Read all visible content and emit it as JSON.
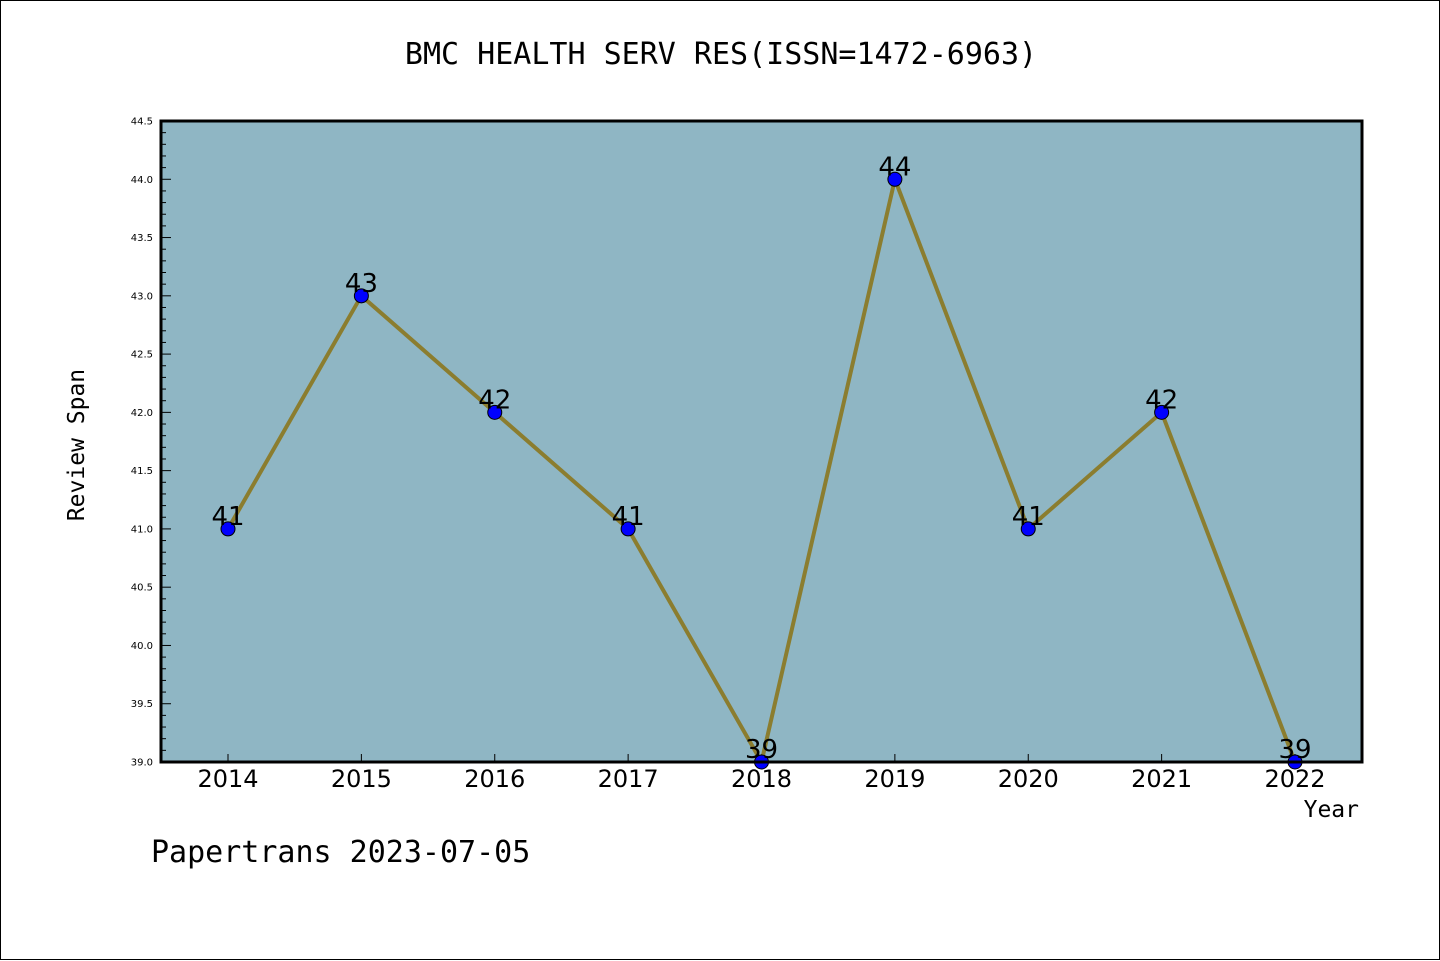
{
  "chart_data": {
    "type": "line",
    "title": "BMC HEALTH SERV RES(ISSN=1472-6963)",
    "xlabel": "Year",
    "ylabel": "Review Span",
    "categories": [
      "2014",
      "2015",
      "2016",
      "2017",
      "2018",
      "2019",
      "2020",
      "2021",
      "2022"
    ],
    "series": [
      {
        "values": [
          41,
          43,
          42,
          41,
          39,
          44,
          41,
          42,
          39
        ]
      }
    ],
    "data_labels": [
      "41",
      "43",
      "42",
      "41",
      "39",
      "44",
      "41",
      "42",
      "39"
    ],
    "ylim": [
      39.0,
      44.5
    ],
    "y_ticks": [
      "39.0",
      "39.5",
      "40.0",
      "40.5",
      "41.0",
      "41.5",
      "42.0",
      "42.5",
      "43.0",
      "43.5",
      "44.0",
      "44.5"
    ],
    "grid": false,
    "legend": "none",
    "colors": {
      "plot_background": "#8fb6c4",
      "line": "#8b7d2f",
      "marker": "#0000ff"
    }
  },
  "footer": "Papertrans 2023-07-05"
}
